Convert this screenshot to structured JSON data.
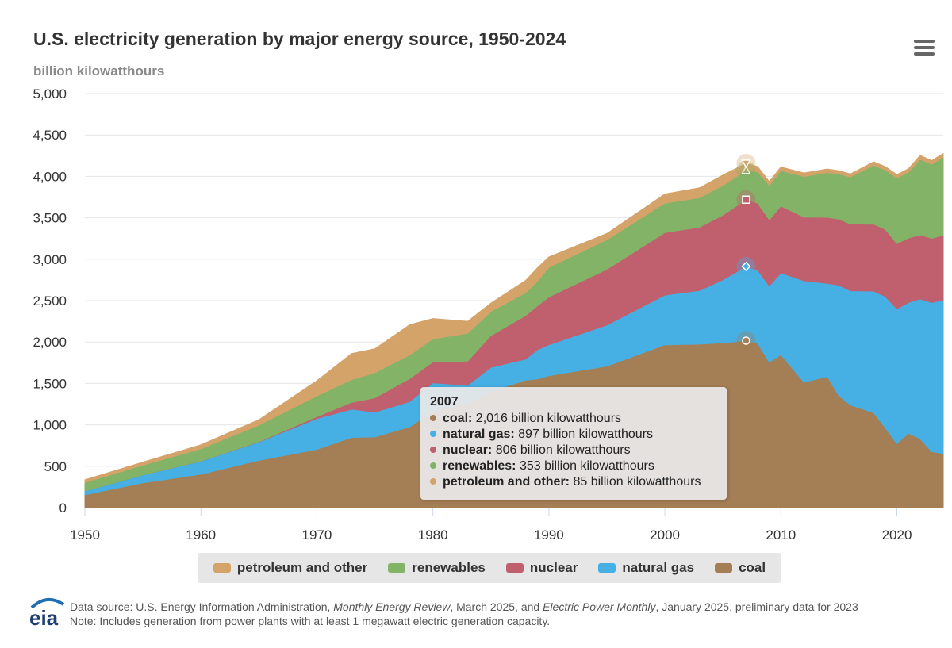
{
  "header": {
    "title": "U.S. electricity generation by major energy source, 1950-2024",
    "subtitle": "billion kilowatthours",
    "menu_icon": "hamburger-menu-icon"
  },
  "colors": {
    "coal": "#a47e54",
    "natural_gas": "#46b0e4",
    "nuclear": "#c0606e",
    "renewables": "#82b366",
    "petroleum": "#d4a36a",
    "grid": "#e6e6e6",
    "axis_text": "#333333"
  },
  "chart_data": {
    "type": "area",
    "stacked": true,
    "title": "U.S. electricity generation by major energy source, 1950-2024",
    "ylabel": "billion kilowatthours",
    "xlabel": "",
    "xlim": [
      1950,
      2024
    ],
    "ylim": [
      0,
      5000
    ],
    "yticks": [
      0,
      500,
      1000,
      1500,
      2000,
      2500,
      3000,
      3500,
      4000,
      4500,
      5000
    ],
    "ytick_labels": [
      "0",
      "500",
      "1,000",
      "1,500",
      "2,000",
      "2,500",
      "3,000",
      "3,500",
      "4,000",
      "4,500",
      "5,000"
    ],
    "xticks": [
      1950,
      1960,
      1970,
      1980,
      1990,
      2000,
      2010,
      2020
    ],
    "grid": true,
    "legend_position": "bottom-center",
    "anchor_years": [
      1950,
      1955,
      1960,
      1965,
      1970,
      1973,
      1975,
      1978,
      1980,
      1983,
      1985,
      1988,
      1989,
      1990,
      1995,
      2000,
      2003,
      2005,
      2007,
      2008,
      2009,
      2010,
      2012,
      2014,
      2015,
      2016,
      2018,
      2019,
      2020,
      2021,
      2022,
      2023,
      2024
    ],
    "series": [
      {
        "key": "coal",
        "name": "coal",
        "values": [
          155,
          300,
          403,
          571,
          704,
          848,
          853,
          976,
          1162,
          1259,
          1402,
          1540,
          1554,
          1594,
          1709,
          1966,
          1974,
          1990,
          2016,
          1986,
          1756,
          1847,
          1514,
          1582,
          1352,
          1240,
          1146,
          965,
          774,
          898,
          832,
          675,
          653
        ]
      },
      {
        "key": "natural_gas",
        "name": "natural gas",
        "values": [
          45,
          95,
          158,
          221,
          373,
          341,
          300,
          305,
          346,
          217,
          292,
          253,
          352,
          373,
          496,
          601,
          649,
          761,
          897,
          883,
          921,
          988,
          1225,
          1127,
          1335,
          1379,
          1469,
          1586,
          1625,
          1579,
          1689,
          1802,
          1855
        ]
      },
      {
        "key": "nuclear",
        "name": "nuclear",
        "values": [
          0,
          0,
          1,
          4,
          22,
          83,
          173,
          276,
          251,
          294,
          384,
          527,
          529,
          577,
          673,
          754,
          764,
          782,
          806,
          806,
          799,
          807,
          769,
          797,
          797,
          806,
          807,
          809,
          790,
          778,
          772,
          775,
          782
        ]
      },
      {
        "key": "renewables",
        "name": "renewables",
        "values": [
          102,
          118,
          149,
          200,
          250,
          275,
          303,
          286,
          279,
          336,
          292,
          275,
          296,
          357,
          357,
          356,
          355,
          358,
          353,
          380,
          417,
          427,
          491,
          540,
          546,
          567,
          713,
          717,
          792,
          796,
          913,
          894,
          941
        ]
      },
      {
        "key": "petroleum",
        "name": "petroleum and other",
        "values": [
          34,
          37,
          48,
          65,
          184,
          314,
          289,
          365,
          246,
          144,
          100,
          148,
          162,
          127,
          75,
          110,
          120,
          125,
          85,
          63,
          43,
          44,
          42,
          43,
          38,
          38,
          41,
          41,
          40,
          42,
          47,
          45,
          45
        ]
      }
    ]
  },
  "tooltip": {
    "year": "2007",
    "rows": [
      {
        "key": "coal",
        "name": "coal:",
        "value": "2,016 billion kilowatthours"
      },
      {
        "key": "natural_gas",
        "name": "natural gas:",
        "value": "897 billion kilowatthours"
      },
      {
        "key": "nuclear",
        "name": "nuclear:",
        "value": "806 billion kilowatthours"
      },
      {
        "key": "renewables",
        "name": "renewables:",
        "value": "353 billion kilowatthours"
      },
      {
        "key": "petroleum",
        "name": "petroleum and other:",
        "value": "85 billion kilowatthours"
      }
    ]
  },
  "legend": [
    {
      "key": "petroleum",
      "label": "petroleum and other"
    },
    {
      "key": "renewables",
      "label": "renewables"
    },
    {
      "key": "nuclear",
      "label": "nuclear"
    },
    {
      "key": "natural_gas",
      "label": "natural gas"
    },
    {
      "key": "coal",
      "label": "coal"
    }
  ],
  "footer": {
    "logo_text": "eia",
    "source_prefix": "Data source: U.S. Energy Information Administration, ",
    "source_pub1": "Monthly Energy Review",
    "source_mid": ", March 2025, and ",
    "source_pub2": "Electric Power Monthly",
    "source_suffix": ", January 2025, preliminary data for 2023",
    "note": "Note: Includes generation from power plants with at least 1 megawatt electric generation capacity."
  }
}
